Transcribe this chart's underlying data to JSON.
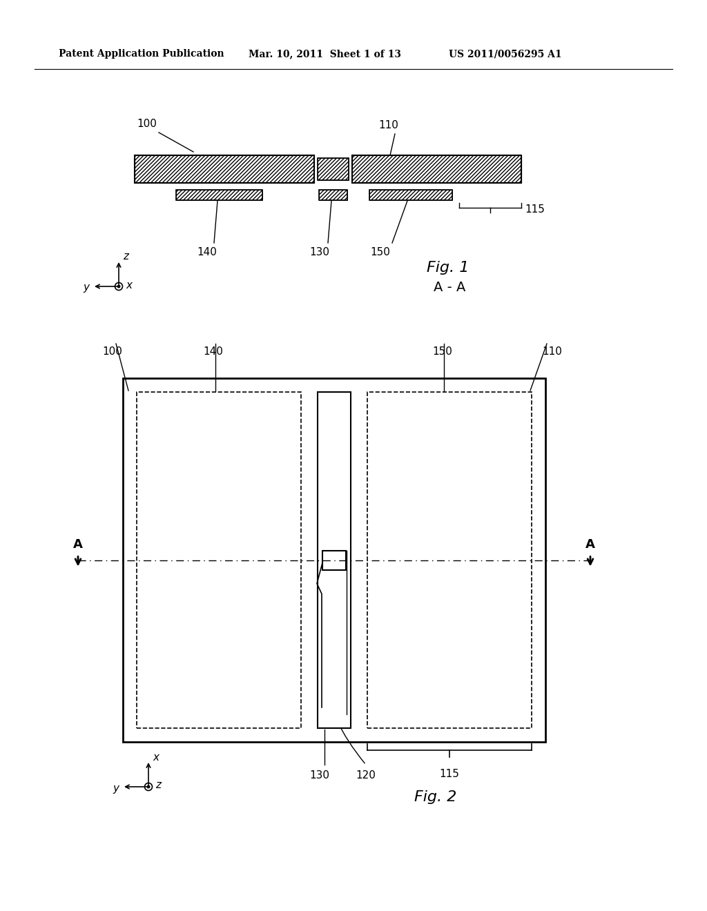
{
  "bg_color": "#ffffff",
  "header_text1": "Patent Application Publication",
  "header_text2": "Mar. 10, 2011  Sheet 1 of 13",
  "header_text3": "US 2011/0056295 A1",
  "fig1_label": "Fig. 1",
  "fig1_sublabel": "A - A",
  "fig2_label": "Fig. 2",
  "label_100_1": "100",
  "label_110_1": "110",
  "label_115_1": "115",
  "label_140_1": "140",
  "label_130_1": "130",
  "label_150_1": "150",
  "label_100_2": "100",
  "label_110_2": "110",
  "label_115_2": "115",
  "label_120_2": "120",
  "label_130_2": "130",
  "label_140_2": "140",
  "label_150_2": "150",
  "label_A_left": "A",
  "label_A_right": "A"
}
